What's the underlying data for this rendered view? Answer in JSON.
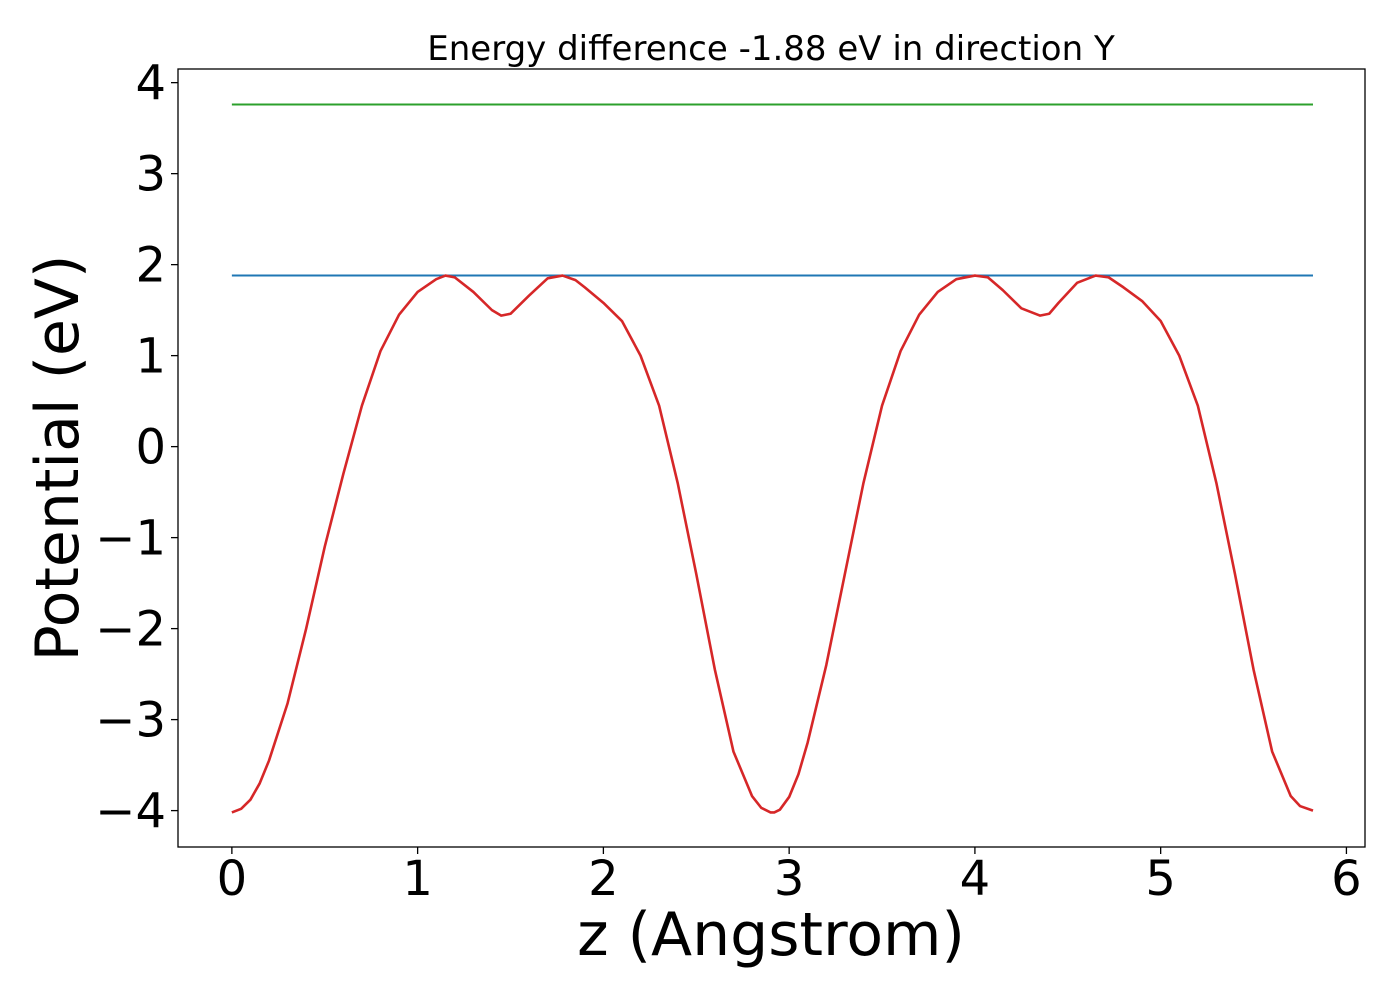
{
  "chart_data": {
    "type": "line",
    "title": "Energy difference -1.88 eV in direction Y",
    "xlabel": "z (Angstrom)",
    "ylabel": "Potential (eV)",
    "xlim": [
      -0.29,
      6.1
    ],
    "ylim": [
      -4.4,
      4.15
    ],
    "xticks": [
      0,
      1,
      2,
      3,
      4,
      5,
      6
    ],
    "xtick_labels": [
      "0",
      "1",
      "2",
      "3",
      "4",
      "5",
      "6"
    ],
    "yticks": [
      -4,
      -3,
      -2,
      -1,
      0,
      1,
      2,
      3,
      4
    ],
    "ytick_labels": [
      "−4",
      "−3",
      "−2",
      "−1",
      "0",
      "1",
      "2",
      "3",
      "4"
    ],
    "grid": false,
    "legend": "none",
    "series": [
      {
        "color": "#2ca02c",
        "x": [
          0,
          5.82
        ],
        "y": [
          3.76,
          3.76
        ]
      },
      {
        "color": "#1f77b4",
        "x": [
          0,
          5.82
        ],
        "y": [
          1.88,
          1.88
        ]
      },
      {
        "color": "#d62728",
        "x": [
          0,
          0.05,
          0.1,
          0.15,
          0.2,
          0.3,
          0.4,
          0.5,
          0.6,
          0.7,
          0.8,
          0.9,
          1.0,
          1.1,
          1.15,
          1.2,
          1.3,
          1.4,
          1.45,
          1.5,
          1.6,
          1.7,
          1.78,
          1.85,
          1.9,
          2.0,
          2.1,
          2.2,
          2.3,
          2.4,
          2.5,
          2.6,
          2.7,
          2.8,
          2.85,
          2.9,
          2.92,
          2.95,
          3.0,
          3.05,
          3.1,
          3.2,
          3.3,
          3.4,
          3.5,
          3.6,
          3.7,
          3.8,
          3.9,
          4.0,
          4.07,
          4.15,
          4.25,
          4.35,
          4.4,
          4.45,
          4.55,
          4.65,
          4.72,
          4.8,
          4.9,
          5.0,
          5.1,
          5.2,
          5.3,
          5.4,
          5.5,
          5.6,
          5.7,
          5.75,
          5.82
        ],
        "y": [
          -4.02,
          -3.98,
          -3.88,
          -3.7,
          -3.45,
          -2.82,
          -2.0,
          -1.1,
          -0.3,
          0.45,
          1.05,
          1.45,
          1.7,
          1.84,
          1.88,
          1.86,
          1.7,
          1.5,
          1.44,
          1.46,
          1.66,
          1.85,
          1.88,
          1.83,
          1.75,
          1.58,
          1.38,
          1.0,
          0.45,
          -0.4,
          -1.4,
          -2.45,
          -3.35,
          -3.84,
          -3.97,
          -4.02,
          -4.02,
          -3.99,
          -3.85,
          -3.6,
          -3.25,
          -2.4,
          -1.4,
          -0.4,
          0.45,
          1.05,
          1.45,
          1.7,
          1.84,
          1.88,
          1.86,
          1.72,
          1.52,
          1.44,
          1.46,
          1.58,
          1.8,
          1.88,
          1.86,
          1.75,
          1.6,
          1.38,
          1.0,
          0.45,
          -0.4,
          -1.4,
          -2.45,
          -3.35,
          -3.84,
          -3.95,
          -4.0
        ]
      }
    ]
  }
}
